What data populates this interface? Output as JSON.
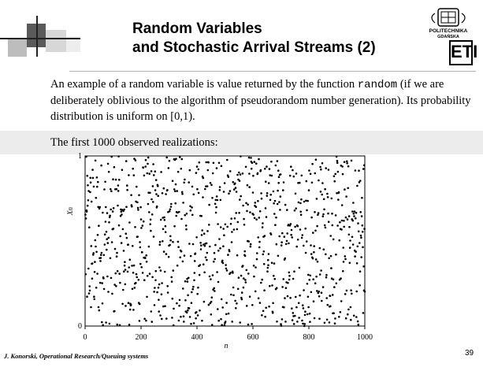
{
  "slide": {
    "title_line1": "Random Variables",
    "title_line2": "and Stochastic Arrival Streams  (2)",
    "paragraph_text1": "An example of a random variable is value returned by the function ",
    "paragraph_code": "random",
    "paragraph_text2": " (if we are deliberately oblivious to the algorithm of pseudorandom number generation). Its probability distribution is uniform on [0,1).",
    "caption": "The first 1000 observed realizations:",
    "footer": "J. Konorski, Operational Research/Queuing systems",
    "page_number": "39"
  },
  "logo": {
    "name": "POLITECHNIKA",
    "city": "GDAŃSKA",
    "faculty": "ETI"
  },
  "chart_data": {
    "type": "scatter",
    "xlabel": "n",
    "ylabel": "Xn",
    "xlim": [
      0,
      1000
    ],
    "ylim": [
      0,
      1
    ],
    "x_ticks": [
      0,
      200,
      400,
      600,
      800,
      1000
    ],
    "y_ticks": [
      0,
      1
    ],
    "grid": false,
    "point_count": 1000,
    "distribution": "uniform [0,1)"
  },
  "colors": {
    "text": "#000000",
    "band": "#ececec",
    "decor_gray": "#a9a9a9"
  }
}
